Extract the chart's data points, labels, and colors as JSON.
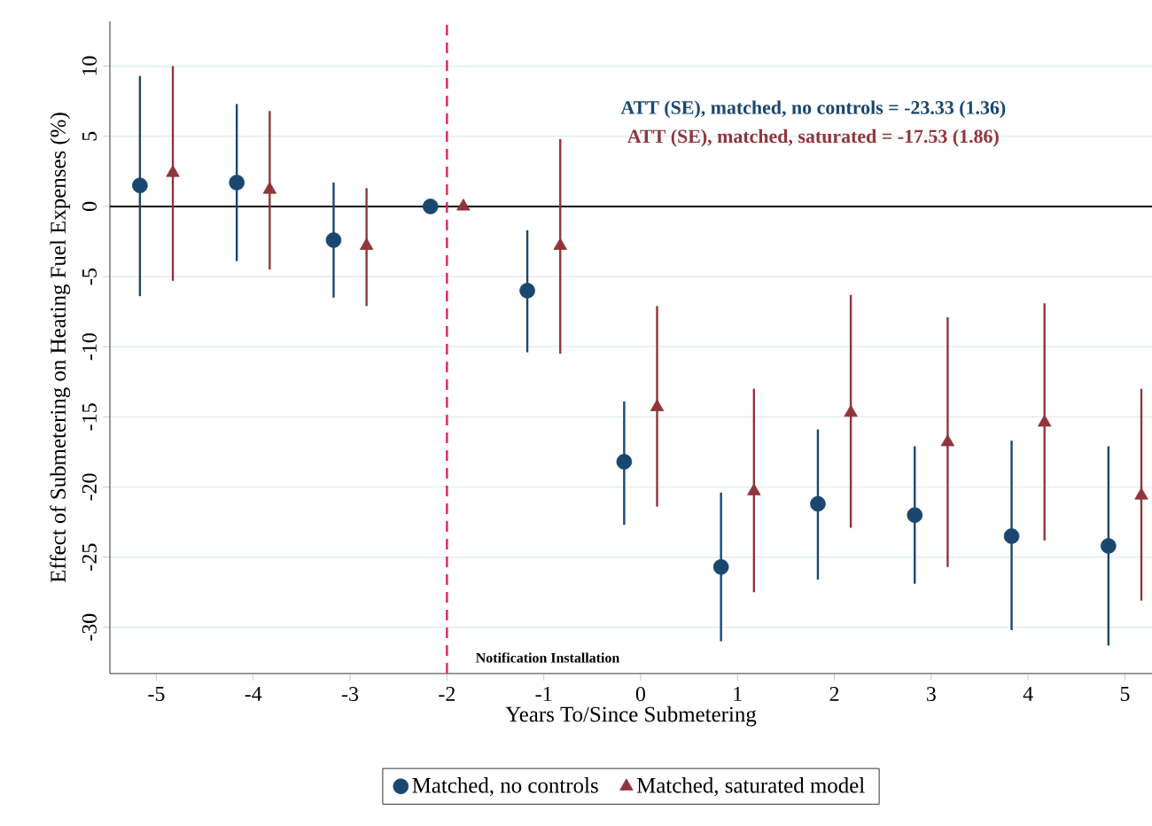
{
  "chart_data": {
    "type": "scatter",
    "xlabel": "Years To/Since Submetering",
    "ylabel": "Effect of Submetering on Heating Fuel Expenses (%)",
    "xlim": [
      -5.48,
      5.28
    ],
    "ylim": [
      -33.3,
      13.2
    ],
    "xticks": [
      -5,
      -4,
      -3,
      -2,
      -1,
      0,
      1,
      2,
      3,
      4,
      5
    ],
    "yticks": [
      -30,
      -25,
      -20,
      -15,
      -10,
      -5,
      0,
      5,
      10
    ],
    "grid": "y",
    "legend": "bottom",
    "ref_lines": [
      {
        "axis": "y",
        "value": 0,
        "color": "#000000",
        "line_style": "solid"
      },
      {
        "axis": "x",
        "value": -2,
        "label": "Notification Installation",
        "color": "#e0245e",
        "line_style": "dashed"
      }
    ],
    "annotations": [
      "ATT (SE), matched, no controls = -23.33 (1.36)",
      "ATT (SE), matched, saturated = -17.53 (1.86)"
    ],
    "series": [
      {
        "name": "Matched, no controls",
        "color": "#1a476f",
        "marker": "circle",
        "x": [
          -5.17,
          -4.17,
          -3.17,
          -2.17,
          -1.17,
          -0.17,
          0.83,
          1.83,
          2.83,
          3.83,
          4.83
        ],
        "values": [
          1.5,
          1.7,
          -2.4,
          0,
          -6.0,
          -18.2,
          -25.7,
          -21.2,
          -22.0,
          -23.5,
          -24.2
        ],
        "errors": [
          [
            -6.4,
            9.3
          ],
          [
            -3.9,
            7.3
          ],
          [
            -6.5,
            1.7
          ],
          null,
          [
            -10.4,
            -1.7
          ],
          [
            -22.7,
            -13.9
          ],
          [
            -31.0,
            -20.4
          ],
          [
            -26.6,
            -15.9
          ],
          [
            -26.9,
            -17.1
          ],
          [
            -30.2,
            -16.7
          ],
          [
            -31.3,
            -17.1
          ]
        ]
      },
      {
        "name": "Matched, saturated model",
        "color": "#90353b",
        "marker": "triangle",
        "x": [
          -4.83,
          -3.83,
          -2.83,
          -1.83,
          -0.83,
          0.17,
          1.17,
          2.17,
          3.17,
          4.17,
          5.17
        ],
        "values": [
          2.4,
          1.2,
          -2.8,
          0,
          -2.8,
          -14.3,
          -20.3,
          -14.7,
          -16.8,
          -15.4,
          -20.6
        ],
        "errors": [
          [
            -5.3,
            10.0
          ],
          [
            -4.5,
            6.8
          ],
          [
            -7.1,
            1.3
          ],
          null,
          [
            -10.5,
            4.8
          ],
          [
            -21.4,
            -7.1
          ],
          [
            -27.5,
            -13.0
          ],
          [
            -22.9,
            -6.3
          ],
          [
            -25.7,
            -7.9
          ],
          [
            -23.8,
            -6.9
          ],
          [
            -28.1,
            -13.0
          ]
        ]
      }
    ]
  }
}
